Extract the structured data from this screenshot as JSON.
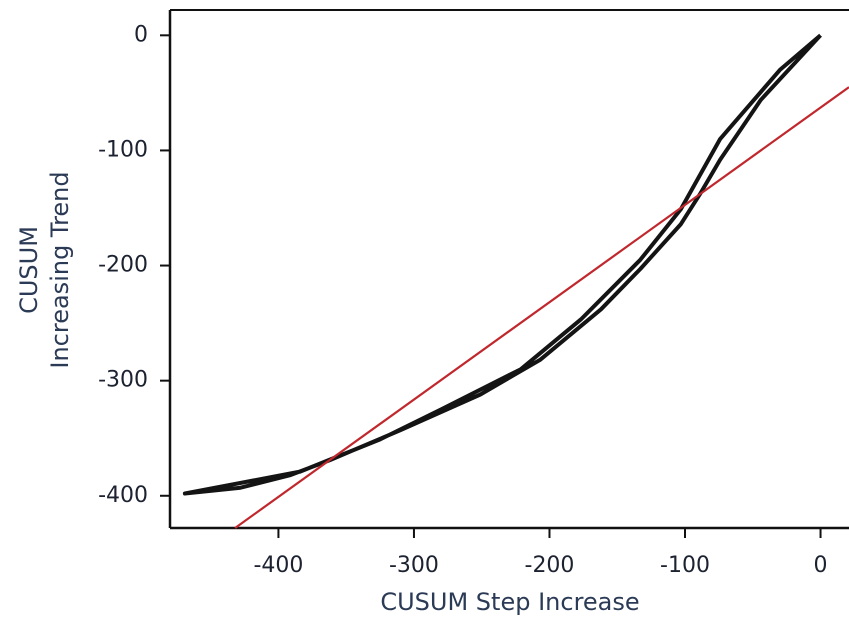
{
  "chart_data": {
    "type": "line",
    "xlabel": "CUSUM Step Increase",
    "ylabel": [
      "CUSUM",
      "Increasing Trend"
    ],
    "xlim": [
      -480,
      21
    ],
    "ylim": [
      -428,
      22
    ],
    "xticks": [
      -400,
      -300,
      -200,
      -100,
      0
    ],
    "yticks": [
      0,
      -100,
      -200,
      -300,
      -400
    ],
    "series": [
      {
        "color": "#141414",
        "x": [
          0,
          -44,
          -74,
          -89,
          -103,
          -133,
          -162,
          -207,
          -251,
          -310,
          -362,
          -391,
          -428,
          -469,
          -384,
          -325,
          -280,
          -221,
          -177,
          -133,
          -103,
          -74,
          -30,
          0
        ],
        "values": [
          0,
          -56,
          -108,
          -138,
          -164,
          -203,
          -238,
          -282,
          -312,
          -343,
          -369,
          -382,
          -393,
          -398,
          -379,
          -351,
          -325,
          -290,
          -247,
          -195,
          -151,
          -90,
          -30,
          0
        ]
      },
      {
        "color": "#c0282d",
        "x": [
          -432,
          21
        ],
        "values": [
          -428,
          -45
        ]
      }
    ]
  }
}
